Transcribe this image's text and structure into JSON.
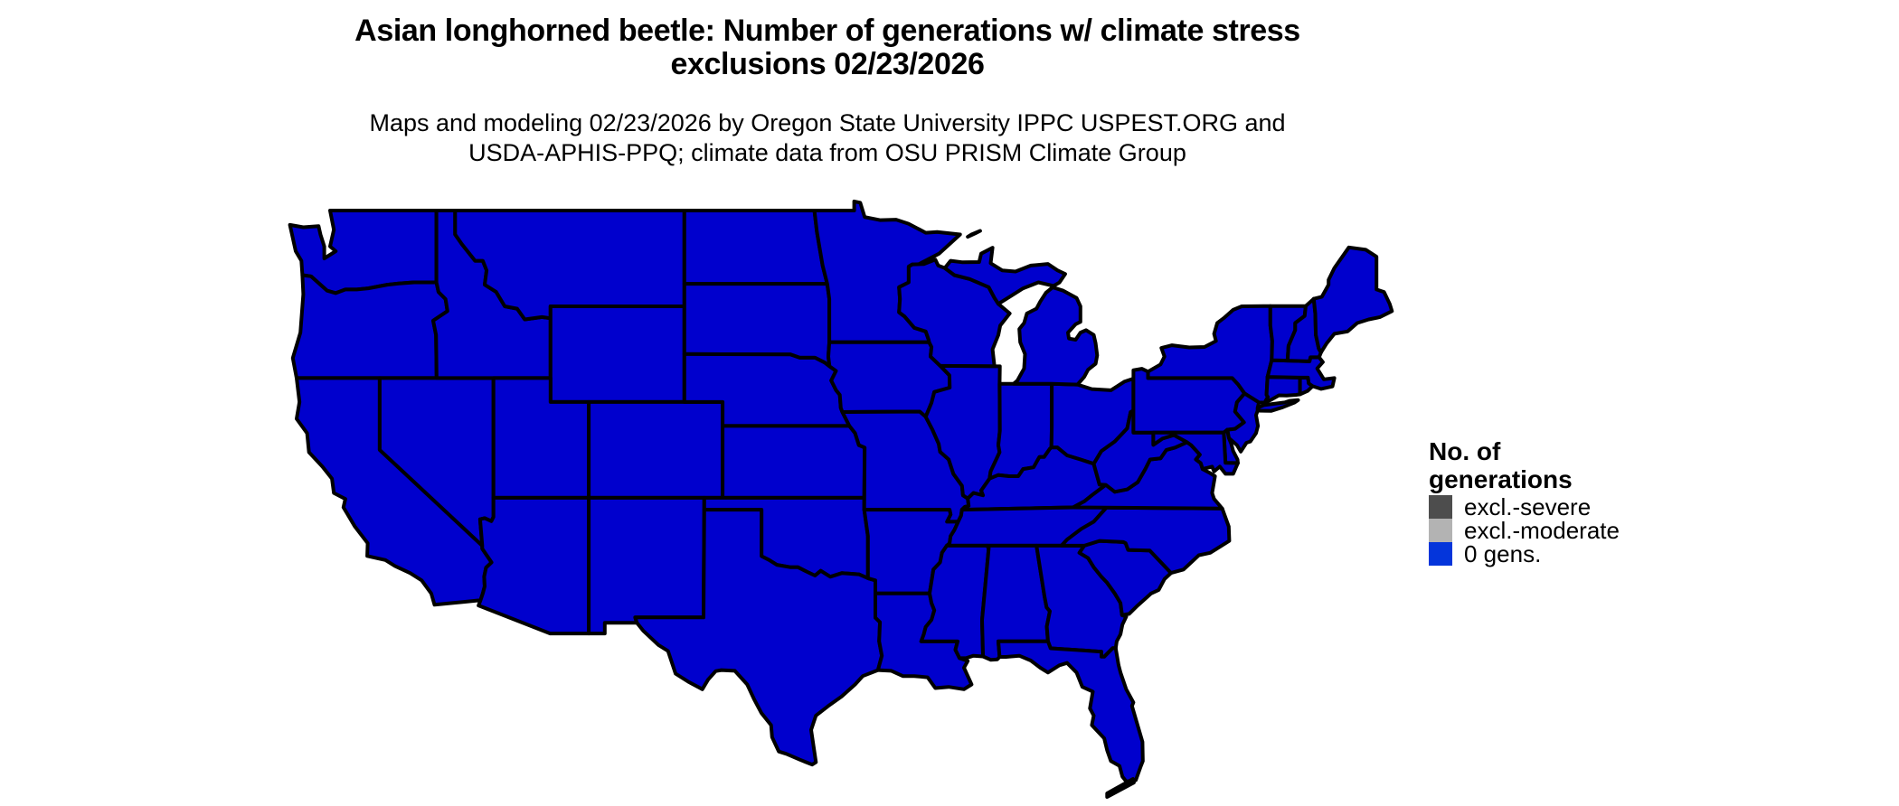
{
  "figure": {
    "title_lines": [
      "Asian longhorned beetle: Number of generations w/ climate stress",
      "exclusions 02/23/2026"
    ],
    "subtitle_lines": [
      "Maps and modeling 02/23/2026 by Oregon State University IPPC USPEST.ORG and",
      "USDA-APHIS-PPQ; climate data from OSU PRISM Climate Group"
    ]
  },
  "map": {
    "fill_color": "#0000CD",
    "border_color": "#000000",
    "background_color": "#FFFFFF"
  },
  "legend": {
    "title": "No. of generations",
    "items": [
      {
        "label": "excl.-severe",
        "color": "#4D4D4D"
      },
      {
        "label": "excl.-moderate",
        "color": "#B3B3B3"
      },
      {
        "label": "0 gens.",
        "color": "#0435DB"
      }
    ]
  }
}
